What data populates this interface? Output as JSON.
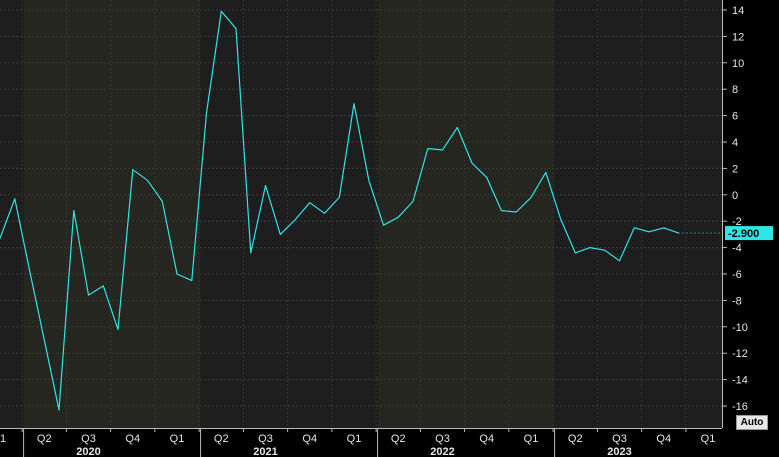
{
  "chart_data": {
    "type": "line",
    "line_color": "#2ee6e6",
    "bg_colors": [
      "#1e1e1e",
      "#24261f"
    ],
    "ylim": [
      -17,
      15
    ],
    "y_ticks": [
      14,
      12,
      10,
      8,
      6,
      4,
      2,
      0,
      -2,
      -4,
      -6,
      -8,
      -10,
      -12,
      -14,
      -16
    ],
    "y_tick_labels": [
      "14",
      "12",
      "10",
      "8",
      "6",
      "4",
      "2",
      "0",
      "-2",
      "-4",
      "-6",
      "-8",
      "-10",
      "-12",
      "-14",
      "-16"
    ],
    "quarter_labels": [
      {
        "label": "1",
        "t": 0
      },
      {
        "label": "Q2",
        "t": 3
      },
      {
        "label": "Q3",
        "t": 6
      },
      {
        "label": "Q4",
        "t": 9
      },
      {
        "label": "Q1",
        "t": 12
      },
      {
        "label": "Q2",
        "t": 15
      },
      {
        "label": "Q3",
        "t": 18
      },
      {
        "label": "Q4",
        "t": 21
      },
      {
        "label": "Q1",
        "t": 24
      },
      {
        "label": "Q2",
        "t": 27
      },
      {
        "label": "Q3",
        "t": 30
      },
      {
        "label": "Q4",
        "t": 33
      },
      {
        "label": "Q1",
        "t": 36
      },
      {
        "label": "Q2",
        "t": 39
      },
      {
        "label": "Q3",
        "t": 42
      },
      {
        "label": "Q4",
        "t": 45
      },
      {
        "label": "Q1",
        "t": 48
      }
    ],
    "year_labels": [
      {
        "label": "2020",
        "t": 6
      },
      {
        "label": "2021",
        "t": 18
      },
      {
        "label": "2022",
        "t": 30
      },
      {
        "label": "2023",
        "t": 42
      }
    ],
    "values": [
      -3.3,
      -0.3,
      -5.7,
      -11.0,
      -16.3,
      -1.2,
      -7.6,
      -6.9,
      -10.2,
      1.9,
      1.1,
      -0.5,
      -6.0,
      -6.5,
      6.2,
      13.9,
      12.6,
      -4.4,
      0.7,
      -3.0,
      -1.9,
      -0.6,
      -1.4,
      -0.2,
      6.9,
      1.1,
      -2.3,
      -1.7,
      -0.5,
      3.5,
      3.4,
      5.1,
      2.4,
      1.3,
      -1.2,
      -1.3,
      -0.2,
      1.7,
      -1.8,
      -4.4,
      -4.0,
      -4.2,
      -5.0,
      -2.5,
      -2.8,
      -2.5,
      -2.9
    ],
    "last_value_label": "-2.900",
    "auto_label": "Auto"
  }
}
